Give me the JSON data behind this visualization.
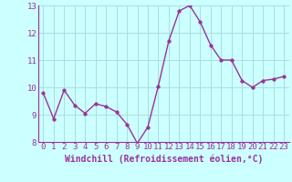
{
  "x": [
    0,
    1,
    2,
    3,
    4,
    5,
    6,
    7,
    8,
    9,
    10,
    11,
    12,
    13,
    14,
    15,
    16,
    17,
    18,
    19,
    20,
    21,
    22,
    23
  ],
  "y": [
    9.8,
    8.85,
    9.9,
    9.35,
    9.05,
    9.4,
    9.3,
    9.1,
    8.65,
    7.95,
    8.55,
    10.05,
    11.7,
    12.8,
    13.0,
    12.4,
    11.55,
    11.0,
    11.0,
    10.25,
    10.0,
    10.25,
    10.3,
    10.4
  ],
  "line_color": "#993399",
  "marker_color": "#993399",
  "bg_color": "#ccffff",
  "grid_color": "#aadddd",
  "xlabel": "Windchill (Refroidissement éolien,°C)",
  "ylim": [
    8,
    13
  ],
  "xlim_min": -0.5,
  "xlim_max": 23.5,
  "yticks": [
    8,
    9,
    10,
    11,
    12,
    13
  ],
  "xticks": [
    0,
    1,
    2,
    3,
    4,
    5,
    6,
    7,
    8,
    9,
    10,
    11,
    12,
    13,
    14,
    15,
    16,
    17,
    18,
    19,
    20,
    21,
    22,
    23
  ],
  "tick_fontsize": 6.5,
  "xlabel_fontsize": 7,
  "linewidth": 1.0,
  "markersize": 2.5
}
